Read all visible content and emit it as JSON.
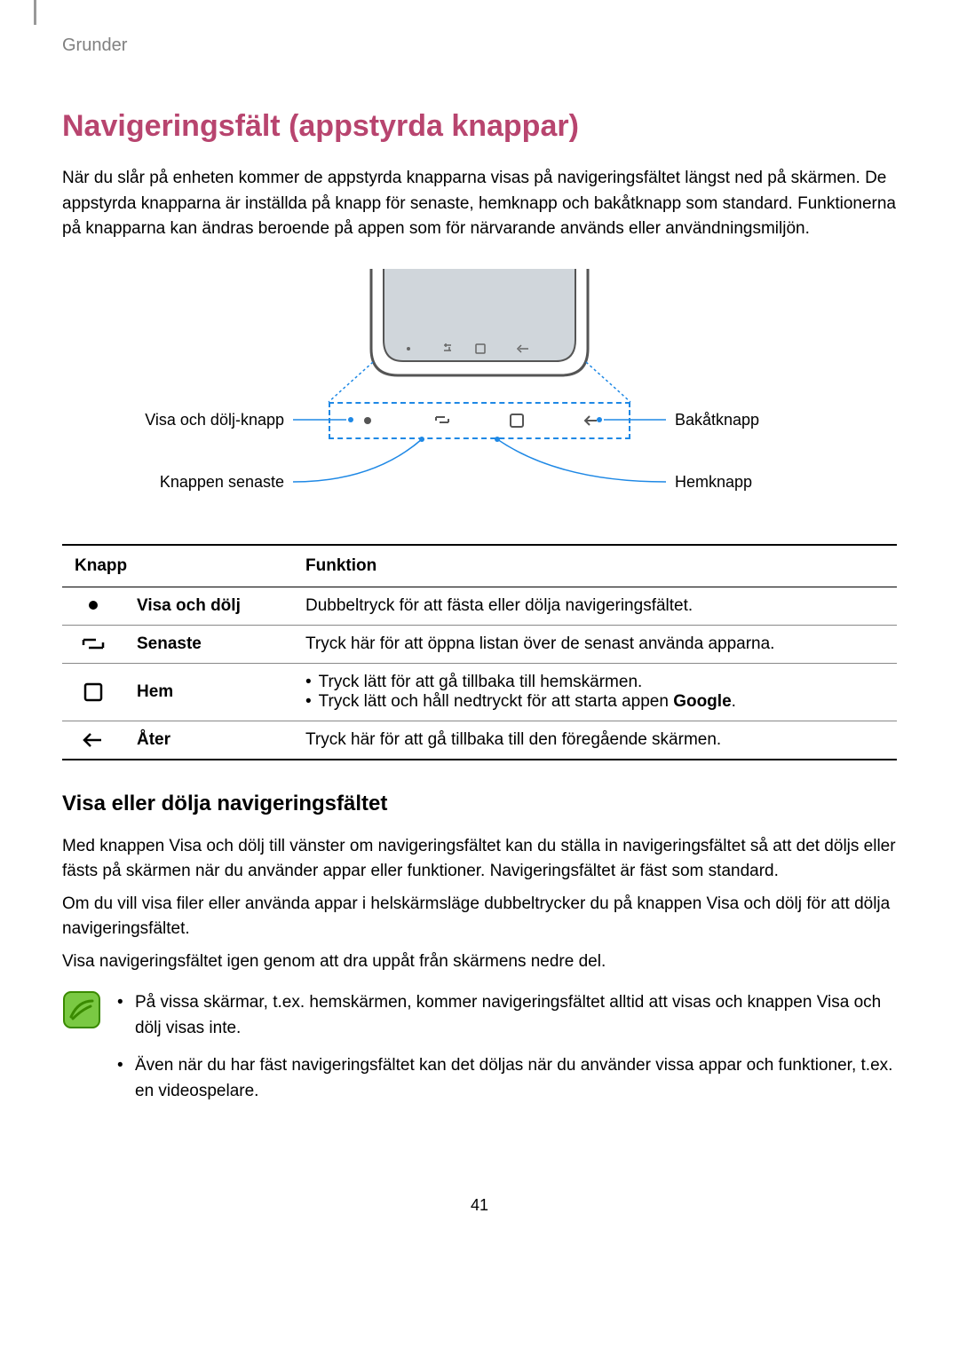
{
  "header": {
    "breadcrumb": "Grunder"
  },
  "title": "Navigeringsfält (appstyrda knappar)",
  "intro": "När du slår på enheten kommer de appstyrda knapparna visas på navigeringsfältet längst ned på skärmen. De appstyrda knapparna är inställda på knapp för senaste, hemknapp och bakåtknapp som standard. Funktionerna på knapparna kan ändras beroende på appen som för närvarande används eller användningsmiljön.",
  "diagram": {
    "labels": {
      "show_hide": "Visa och dölj-knapp",
      "recent": "Knappen senaste",
      "back": "Bakåtknapp",
      "home": "Hemknapp"
    },
    "colors": {
      "dashed_border": "#1e88e5",
      "connector": "#1e88e5",
      "phone_outline": "#555555",
      "phone_fill": "#d0d6db"
    }
  },
  "table": {
    "headers": {
      "button": "Knapp",
      "function": "Funktion"
    },
    "rows": [
      {
        "icon": "dot",
        "name": "Visa och dölj",
        "funcs": [
          "Dubbeltryck för att fästa eller dölja navigeringsfältet."
        ]
      },
      {
        "icon": "recent",
        "name": "Senaste",
        "funcs": [
          "Tryck här för att öppna listan över de senast använda apparna."
        ]
      },
      {
        "icon": "home",
        "name": "Hem",
        "funcs": [
          "Tryck lätt för att gå tillbaka till hemskärmen.",
          "Tryck lätt och håll nedtryckt för att starta appen <b>Google</b>."
        ]
      },
      {
        "icon": "back",
        "name": "Åter",
        "funcs": [
          "Tryck här för att gå tillbaka till den föregående skärmen."
        ]
      }
    ]
  },
  "subsection": {
    "title": "Visa eller dölja navigeringsfältet",
    "paragraphs": [
      "Med knappen Visa och dölj till vänster om navigeringsfältet kan du ställa in navigeringsfältet så att det döljs eller fästs på skärmen när du använder appar eller funktioner. Navigeringsfältet är fäst som standard.",
      "Om du vill visa filer eller använda appar i helskärmsläge dubbeltrycker du på knappen Visa och dölj för att dölja navigeringsfältet.",
      "Visa navigeringsfältet igen genom att dra uppåt från skärmens nedre del."
    ],
    "notes": [
      "På vissa skärmar, t.ex. hemskärmen, kommer navigeringsfältet alltid att visas och knappen Visa och dölj visas inte.",
      "Även när du har fäst navigeringsfältet kan det döljas när du använder vissa appar och funktioner, t.ex. en videospelare."
    ]
  },
  "page_number": "41",
  "colors": {
    "title": "#b8456f",
    "header_text": "#808080",
    "note_icon_bg": "#7ac943",
    "note_icon_stroke": "#3a8a00"
  }
}
